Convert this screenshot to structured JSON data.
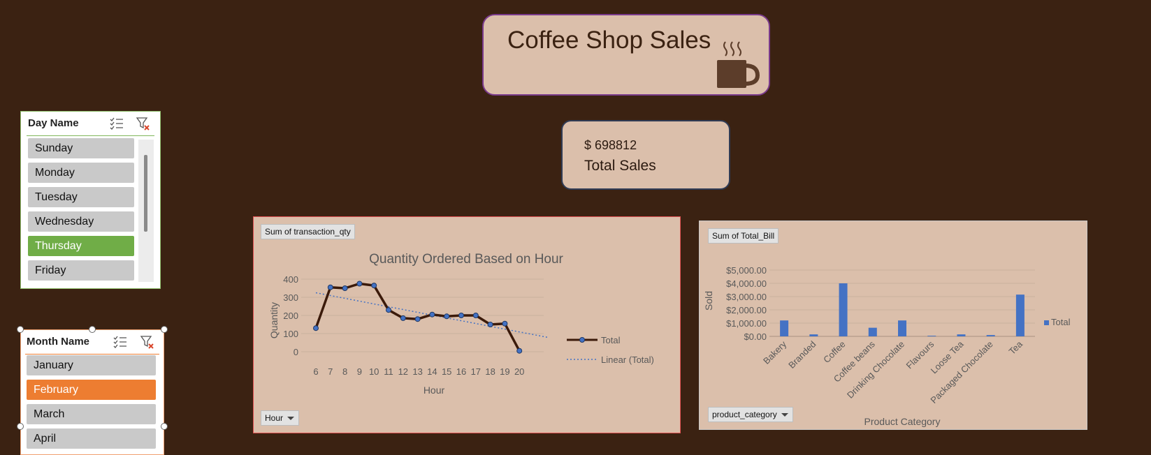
{
  "title_card": {
    "title": "Coffee Shop Sales",
    "icon": "coffee-mug-icon"
  },
  "kpi": {
    "value": "$ 698812",
    "label": "Total Sales"
  },
  "day_slicer": {
    "title": "Day Name",
    "items": [
      "Sunday",
      "Monday",
      "Tuesday",
      "Wednesday",
      "Thursday",
      "Friday"
    ],
    "selected": "Thursday"
  },
  "month_slicer": {
    "title": "Month Name",
    "items": [
      "January",
      "February",
      "March",
      "April"
    ],
    "selected": "February"
  },
  "line_panel": {
    "value_field": "Sum of transaction_qty",
    "axis_field": "Hour"
  },
  "bar_panel": {
    "value_field": "Sum of Total_Bill",
    "axis_field": "product_category"
  },
  "colors": {
    "background": "#3b2212",
    "card": "#dbbfab",
    "line": "#3b1a0a",
    "marker": "#4472c4",
    "bar": "#4472c4",
    "slicer_selected_day": "#70ad47",
    "slicer_selected_month": "#ed7d31"
  },
  "chart_data": [
    {
      "type": "line",
      "title": "Quantity Ordered Based on Hour",
      "xlabel": "Hour",
      "ylabel": "Quantity",
      "x": [
        6,
        7,
        8,
        9,
        10,
        11,
        12,
        13,
        14,
        15,
        16,
        17,
        18,
        19,
        20
      ],
      "yticks": [
        0,
        100,
        200,
        300,
        400
      ],
      "ylim": [
        0,
        400
      ],
      "series": [
        {
          "name": "Total",
          "values": [
            130,
            355,
            350,
            375,
            365,
            230,
            185,
            180,
            205,
            195,
            200,
            200,
            150,
            155,
            5
          ]
        }
      ],
      "trendline": {
        "name": "Linear (Total)",
        "start": 325,
        "end": 78
      },
      "legend": "right",
      "grid": true
    },
    {
      "type": "bar",
      "xlabel": "Product Category",
      "ylabel": "Sold",
      "categories": [
        "Bakery",
        "Branded",
        "Coffee",
        "Coffee beans",
        "Drinking Chocolate",
        "Flavours",
        "Loose Tea",
        "Packaged Chocolate",
        "Tea"
      ],
      "yticks": [
        "$0.00",
        "$1,000.00",
        "$2,000.00",
        "$3,000.00",
        "$4,000.00",
        "$5,000.00"
      ],
      "ylim": [
        0,
        5000
      ],
      "series": [
        {
          "name": "Total",
          "values": [
            1200,
            150,
            4000,
            650,
            1200,
            50,
            150,
            100,
            3150
          ]
        }
      ],
      "legend": "right",
      "grid": true
    }
  ]
}
